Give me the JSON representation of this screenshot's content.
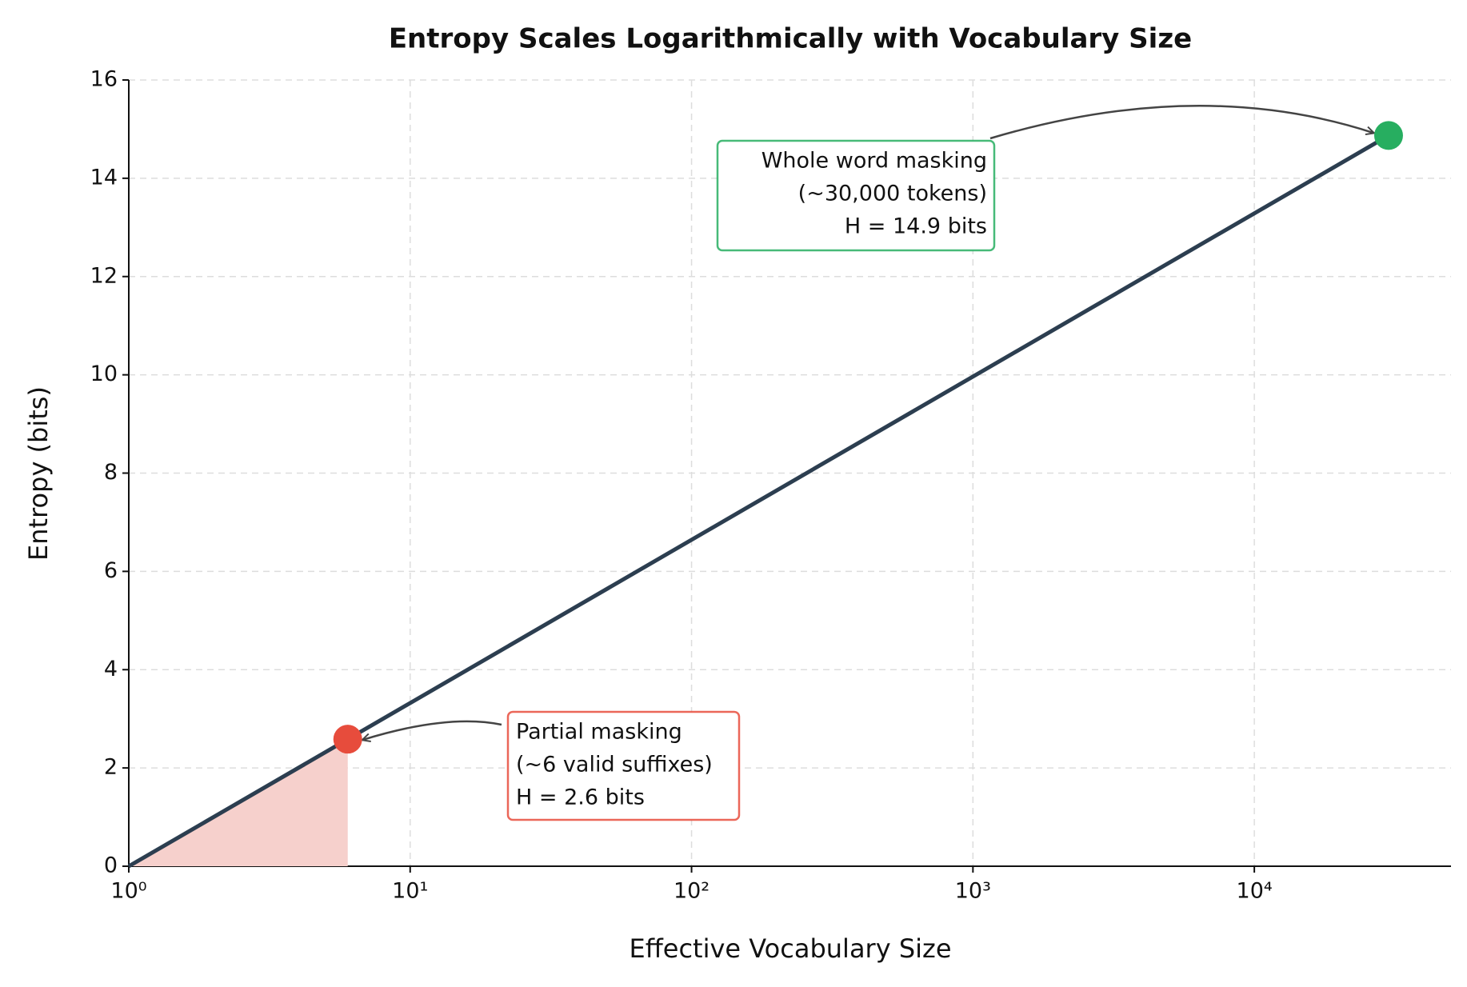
{
  "chart_data": {
    "type": "line",
    "title": "Entropy Scales Logarithmically with Vocabulary Size",
    "x_label": "Effective Vocabulary Size",
    "y_label": "Entropy (bits)",
    "x_scale": "log",
    "grid": true,
    "xlim": [
      1,
      50000
    ],
    "xticks": [
      {
        "value": 1,
        "label": "10⁰"
      },
      {
        "value": 10,
        "label": "10¹"
      },
      {
        "value": 100,
        "label": "10²"
      },
      {
        "value": 1000,
        "label": "10³"
      },
      {
        "value": 10000,
        "label": "10⁴"
      }
    ],
    "ylim": [
      0,
      16
    ],
    "yticks": [
      0,
      2,
      4,
      6,
      8,
      10,
      12,
      14,
      16
    ],
    "series": [
      {
        "color": "#2c3e50",
        "x": [
          1,
          30000
        ],
        "values": [
          0,
          14.87
        ]
      }
    ],
    "points": [
      {
        "x": 6,
        "y": 2.585,
        "color": "#e74c3c",
        "shade": "#f6d0cc",
        "label": [
          "Partial masking",
          "(~6 valid suffixes)",
          "H = 2.6 bits"
        ]
      },
      {
        "x": 30000,
        "y": 14.87,
        "color": "#27ae60",
        "label": [
          "Whole word masking",
          "(~30,000 tokens)",
          "H = 14.9 bits"
        ]
      }
    ]
  }
}
